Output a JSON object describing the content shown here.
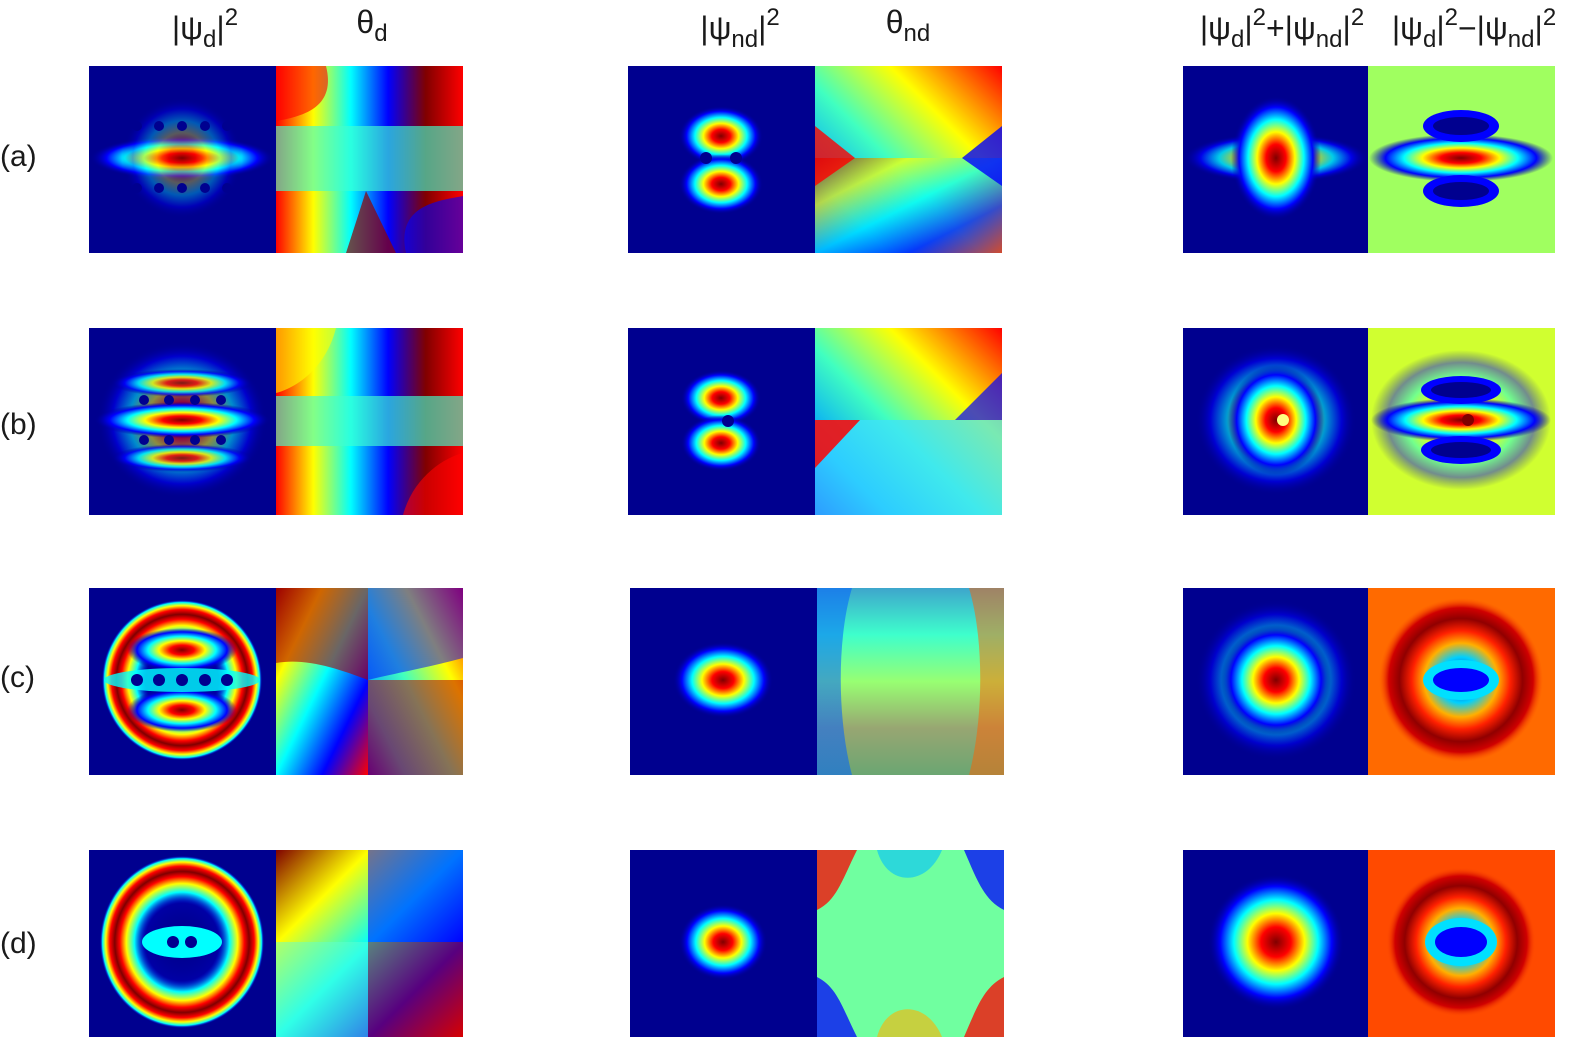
{
  "figure": {
    "column_headers": [
      {
        "base": "|ψ",
        "sub": "d",
        "close": "|",
        "sup": "2",
        "rest": ""
      },
      {
        "base": "θ",
        "sub": "d",
        "close": "",
        "sup": "",
        "rest": ""
      },
      {
        "base": "|ψ",
        "sub": "nd",
        "close": "|",
        "sup": "2",
        "rest": ""
      },
      {
        "base": "θ",
        "sub": "nd",
        "close": "",
        "sup": "",
        "rest": ""
      },
      {
        "base": "|ψ",
        "sub": "d",
        "close": "|",
        "sup": "2",
        "rest": "+|ψ",
        "sub2": "nd",
        "close2": "|",
        "sup2": "2"
      },
      {
        "base": "|ψ",
        "sub": "d",
        "close": "|",
        "sup": "2",
        "rest": "−|ψ",
        "sub2": "nd",
        "close2": "|",
        "sup2": "2"
      }
    ],
    "row_labels": [
      "(a)",
      "(b)",
      "(c)",
      "(d)"
    ],
    "colors": {
      "jet_dark_blue": "#00008f",
      "jet_blue": "#0000ff",
      "jet_cyan": "#00ffff",
      "jet_yellow": "#ffff00",
      "jet_red": "#ff0000",
      "jet_dark_red": "#800000",
      "diff_bg_a": "#a0ff60",
      "diff_bg_b": "#d0ff30",
      "diff_bg_c": "#ff6a00",
      "diff_bg_d": "#ff4a00"
    }
  }
}
